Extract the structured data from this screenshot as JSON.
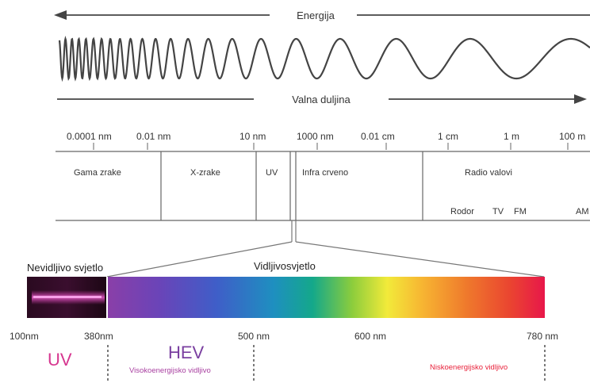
{
  "arrows": {
    "energy_label": "Energija",
    "wavelength_label": "Valna duljina"
  },
  "scale": {
    "ticks": [
      "0.0001 nm",
      "0.01 nm",
      "10 nm",
      "1000 nm",
      "0.01 cm",
      "1 cm",
      "1 m",
      "100 m"
    ]
  },
  "regions": {
    "gamma": "Gama zrake",
    "xray": "X-zrake",
    "uv": "UV",
    "infrared": "Infra crveno",
    "radio": "Radio valovi",
    "radio_sub": [
      "Rodor",
      "TV",
      "FM",
      "AM"
    ]
  },
  "visible": {
    "invisible_label": "Nevidljivo svjetlo",
    "visible_label": "Vidljivosvjetlo",
    "nm_labels": [
      "100nm",
      "380nm",
      "500 nm",
      "600 nm",
      "780 nm"
    ],
    "uv": "UV",
    "hev": "HEV",
    "hev_sub": "Visokoenergijsko vidljivo",
    "low_energy": "Niskoenergijsko vidljivo"
  },
  "colors": {
    "uv_magenta": "#d6368f",
    "hev_purple": "#7a3fa0",
    "low_energy_red": "#e8213a",
    "line": "#555555"
  }
}
